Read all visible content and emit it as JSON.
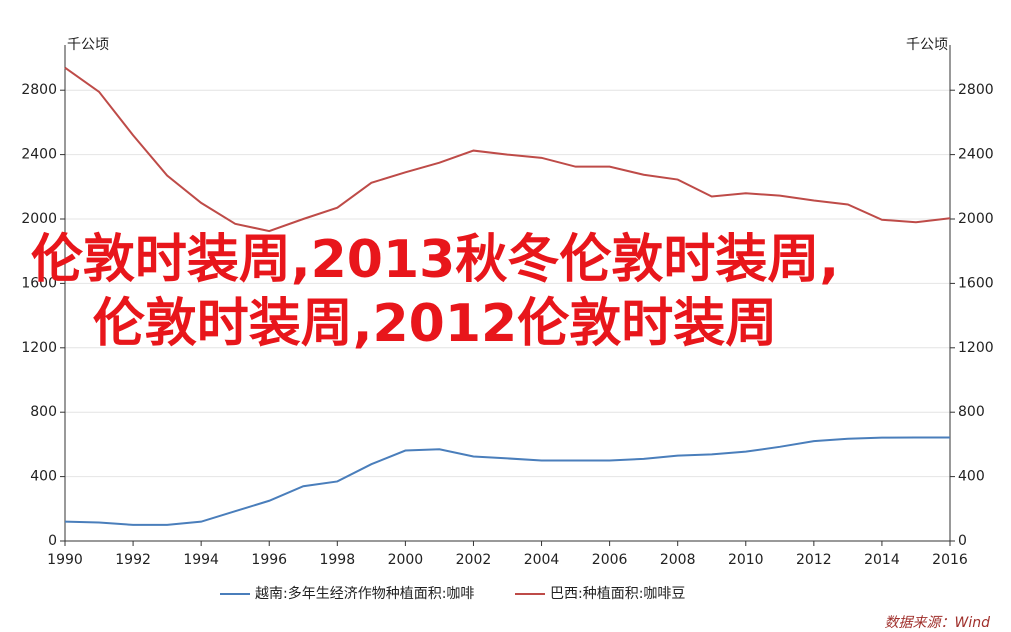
{
  "chart_data": {
    "type": "line",
    "y_unit": "千公顷",
    "y2_unit": "千公顷",
    "x": [
      1990,
      1991,
      1992,
      1993,
      1994,
      1995,
      1996,
      1997,
      1998,
      1999,
      2000,
      2001,
      2002,
      2003,
      2004,
      2005,
      2006,
      2007,
      2008,
      2009,
      2010,
      2011,
      2012,
      2013,
      2014,
      2015,
      2016
    ],
    "xlim": [
      1990,
      2016
    ],
    "xticks": [
      1990,
      1992,
      1994,
      1996,
      1998,
      2000,
      2002,
      2004,
      2006,
      2008,
      2010,
      2012,
      2014,
      2016
    ],
    "ylim": [
      0,
      3000
    ],
    "yticks": [
      0,
      400,
      800,
      1200,
      1600,
      2000,
      2400,
      2800
    ],
    "y2lim": [
      0,
      3000
    ],
    "y2ticks": [
      0,
      400,
      800,
      1200,
      1600,
      2000,
      2400,
      2800
    ],
    "grid": true,
    "legend": "bottom",
    "series": [
      {
        "name": "越南:多年生经济作物种植面积:咖啡",
        "color": "#4a7ebb",
        "values": [
          120,
          115,
          100,
          100,
          120,
          185,
          250,
          340,
          370,
          477,
          562,
          570,
          525,
          513,
          500,
          500,
          500,
          510,
          530,
          538,
          555,
          585,
          620,
          635,
          642,
          643,
          643
        ]
      },
      {
        "name": "巴西:种植面积:咖啡豆",
        "color": "#be4b48",
        "axis": "y2",
        "values": [
          2940,
          2790,
          2520,
          2270,
          2100,
          1970,
          1925,
          2000,
          2070,
          2225,
          2290,
          2350,
          2425,
          2400,
          2380,
          2325,
          2325,
          2275,
          2245,
          2140,
          2160,
          2145,
          2115,
          2090,
          1995,
          1980,
          2005
        ]
      }
    ],
    "source": "数据来源：Wind",
    "overlay_text": "伦敦时装周,2013秋冬伦敦时装周,伦敦时装周,2012伦敦时装周"
  }
}
